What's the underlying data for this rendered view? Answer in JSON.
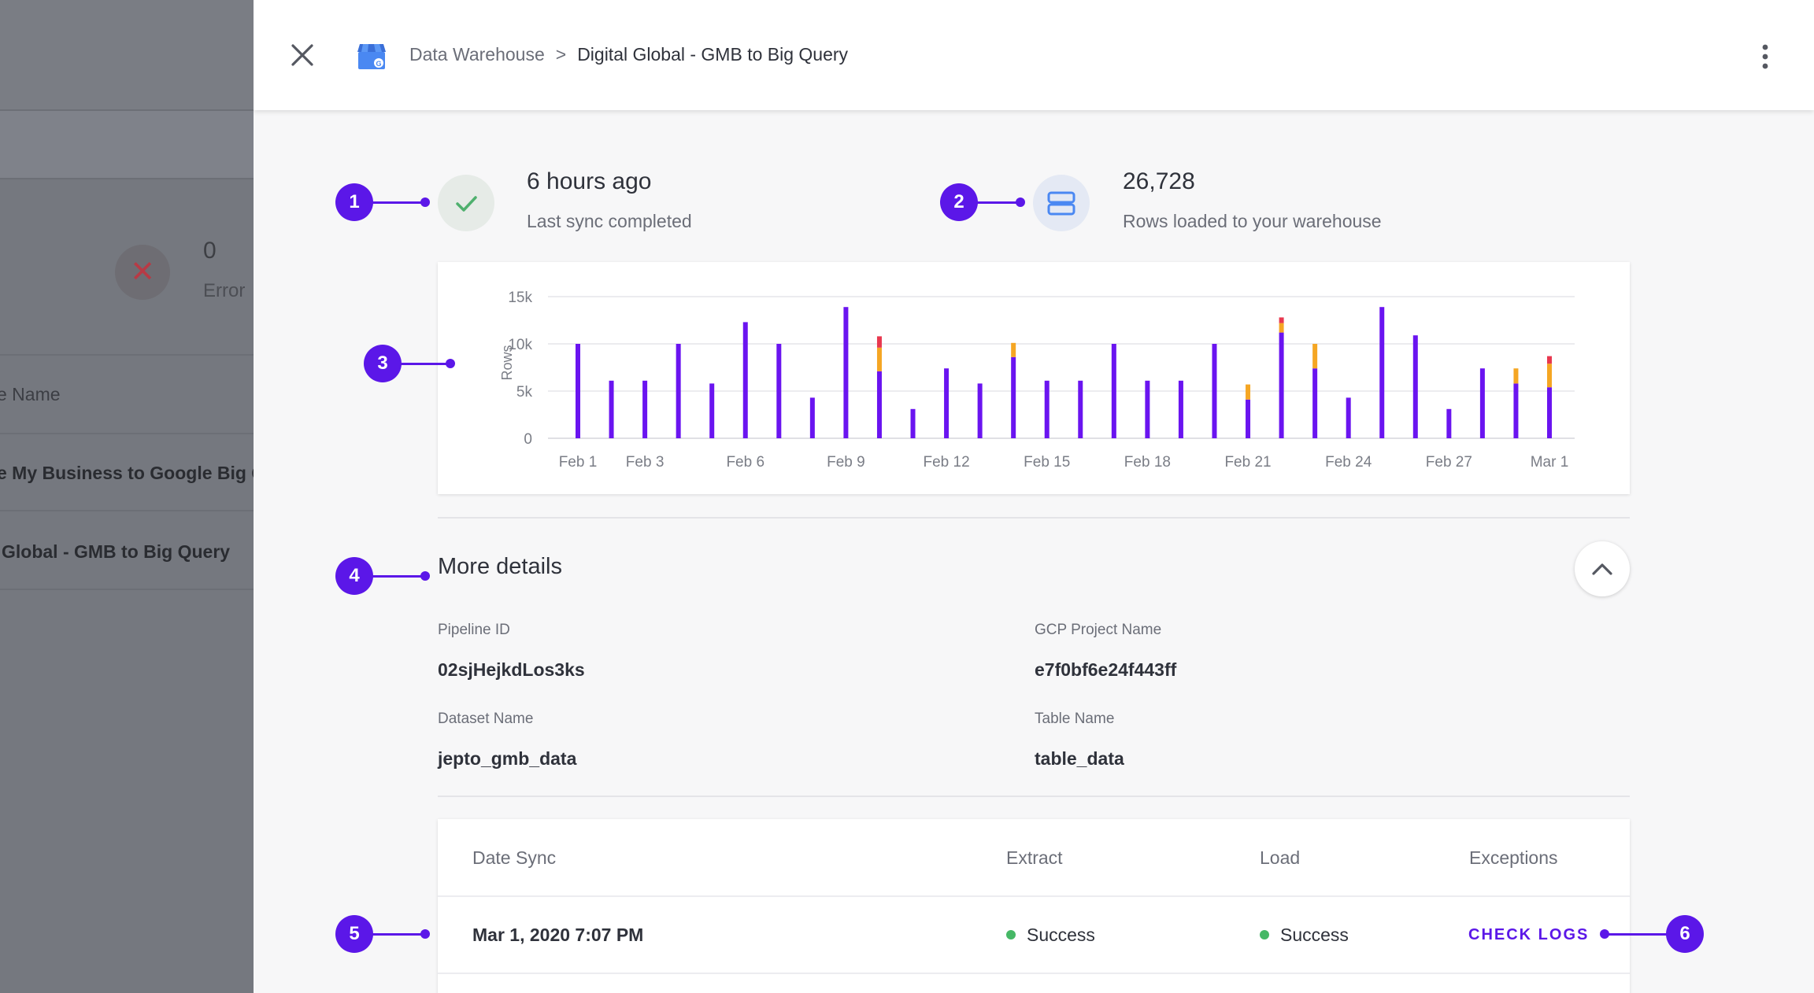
{
  "background": {
    "error_count": "0",
    "error_label": "Error",
    "column_header": "e Name",
    "rows": [
      "e My Business to Google Big Q",
      "Global - GMB to Big Query"
    ]
  },
  "header": {
    "breadcrumb_parent": "Data Warehouse",
    "breadcrumb_separator": ">",
    "breadcrumb_current": "Digital Global - GMB to Big Query"
  },
  "stats": {
    "last_sync": {
      "value": "6 hours ago",
      "label": "Last sync completed"
    },
    "rows_loaded": {
      "value": "26,728",
      "label": "Rows loaded to your warehouse"
    }
  },
  "annotations": [
    "1",
    "2",
    "3",
    "4",
    "5",
    "6"
  ],
  "chart_data": {
    "type": "bar",
    "stacked": true,
    "ylabel": "Rows",
    "ylim": [
      0,
      15000
    ],
    "y_ticks": [
      0,
      5000,
      10000,
      15000
    ],
    "y_tick_labels": [
      "0",
      "5k",
      "10k",
      "15k"
    ],
    "x_tick_labels": [
      "Feb 1",
      "Feb 3",
      "Feb 6",
      "Feb 9",
      "Feb 12",
      "Feb 15",
      "Feb 18",
      "Feb 21",
      "Feb 24",
      "Feb 27",
      "Mar 1"
    ],
    "grid": true,
    "colors": {
      "primary": "#6a14f0",
      "secondary": "#f5a623",
      "tertiary": "#e8384f",
      "grid": "#e6e6ea",
      "axis_text": "#7a7d86"
    },
    "categories": [
      "Feb 1",
      "Feb 2",
      "Feb 3",
      "Feb 4",
      "Feb 5",
      "Feb 6",
      "Feb 7",
      "Feb 8",
      "Feb 9",
      "Feb 10",
      "Feb 11",
      "Feb 12",
      "Feb 13",
      "Feb 14",
      "Feb 15",
      "Feb 16",
      "Feb 17",
      "Feb 18",
      "Feb 19",
      "Feb 20",
      "Feb 21",
      "Feb 22",
      "Feb 23",
      "Feb 24",
      "Feb 25",
      "Feb 26",
      "Feb 27",
      "Feb 28",
      "Feb 29",
      "Mar 1"
    ],
    "series": [
      {
        "values": [
          10000,
          6100,
          6100,
          10000,
          5800,
          12300,
          10000,
          4300,
          13900,
          7100,
          3100,
          7400,
          5800,
          8600,
          6100,
          6100,
          10000,
          6100,
          6100,
          10000,
          4100,
          11200,
          7400,
          4300,
          13900,
          10900,
          3100,
          7400,
          5800,
          5400
        ]
      },
      {
        "values": [
          0,
          0,
          0,
          0,
          0,
          0,
          0,
          0,
          0,
          2500,
          0,
          0,
          0,
          1500,
          0,
          0,
          0,
          0,
          0,
          0,
          1600,
          1000,
          2600,
          0,
          0,
          0,
          0,
          0,
          1600,
          2500
        ]
      },
      {
        "values": [
          0,
          0,
          0,
          0,
          0,
          0,
          0,
          0,
          0,
          1200,
          0,
          0,
          0,
          0,
          0,
          0,
          0,
          0,
          0,
          0,
          0,
          600,
          0,
          0,
          0,
          0,
          0,
          0,
          0,
          800
        ]
      }
    ]
  },
  "details": {
    "title": "More details",
    "fields": [
      {
        "label": "Pipeline ID",
        "value": "02sjHejkdLos3ks"
      },
      {
        "label": "GCP Project Name",
        "value": "e7f0bf6e24f443ff"
      },
      {
        "label": "Dataset Name",
        "value": "jepto_gmb_data"
      },
      {
        "label": "Table Name",
        "value": "table_data"
      }
    ]
  },
  "sync_table": {
    "columns": [
      "Date Sync",
      "Extract",
      "Load",
      "Exceptions"
    ],
    "rows": [
      {
        "date": "Mar 1, 2020 7:07 PM",
        "extract": "Success",
        "load": "Success",
        "action": "CHECK LOGS"
      }
    ],
    "status_color": "#46b866"
  },
  "accent_color": "#5b17e8"
}
